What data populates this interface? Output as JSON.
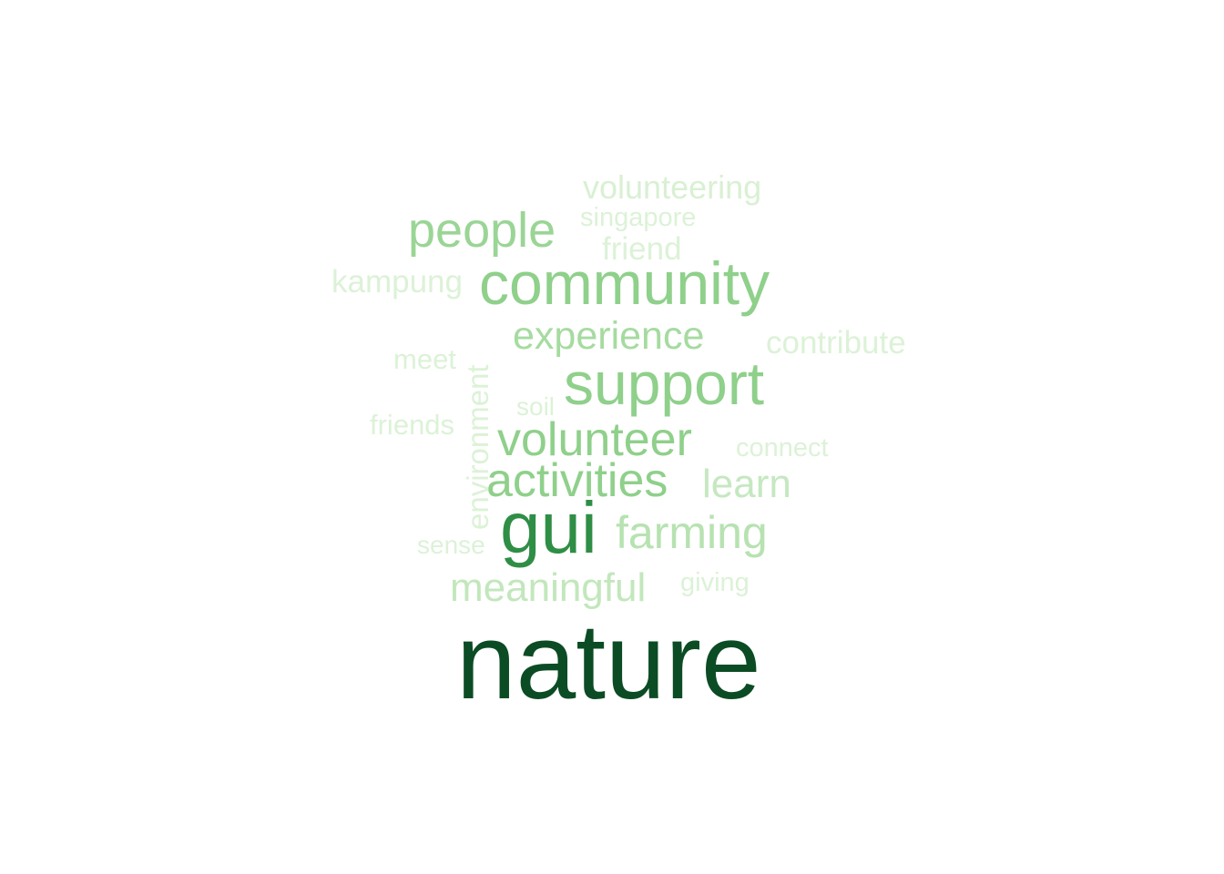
{
  "word_cloud": {
    "palette": "Greens",
    "words": [
      {
        "text": "nature",
        "color": "#0b4c24"
      },
      {
        "text": "gui",
        "color": "#2f8e45"
      },
      {
        "text": "community",
        "color": "#8fd08b"
      },
      {
        "text": "support",
        "color": "#8fd08b"
      },
      {
        "text": "volunteer",
        "color": "#8fd08b"
      },
      {
        "text": "activities",
        "color": "#8fd08b"
      },
      {
        "text": "people",
        "color": "#9ad596"
      },
      {
        "text": "experience",
        "color": "#a6dba0"
      },
      {
        "text": "farming",
        "color": "#b7e2b1"
      },
      {
        "text": "meaningful",
        "color": "#c2e7bc"
      },
      {
        "text": "learn",
        "color": "#c5e8c0"
      },
      {
        "text": "volunteering",
        "color": "#d9f0d3"
      },
      {
        "text": "singapore",
        "color": "#dcf2d7"
      },
      {
        "text": "friend",
        "color": "#dcf2d7"
      },
      {
        "text": "kampung",
        "color": "#dcf2d7"
      },
      {
        "text": "contribute",
        "color": "#dcf2d7"
      },
      {
        "text": "meet",
        "color": "#dcf2d7"
      },
      {
        "text": "environment",
        "color": "#dcf2d7"
      },
      {
        "text": "soil",
        "color": "#dcf2d7"
      },
      {
        "text": "friends",
        "color": "#dcf2d7"
      },
      {
        "text": "connect",
        "color": "#dcf2d7"
      },
      {
        "text": "sense",
        "color": "#dcf2d7"
      },
      {
        "text": "giving",
        "color": "#dcf2d7"
      }
    ]
  }
}
